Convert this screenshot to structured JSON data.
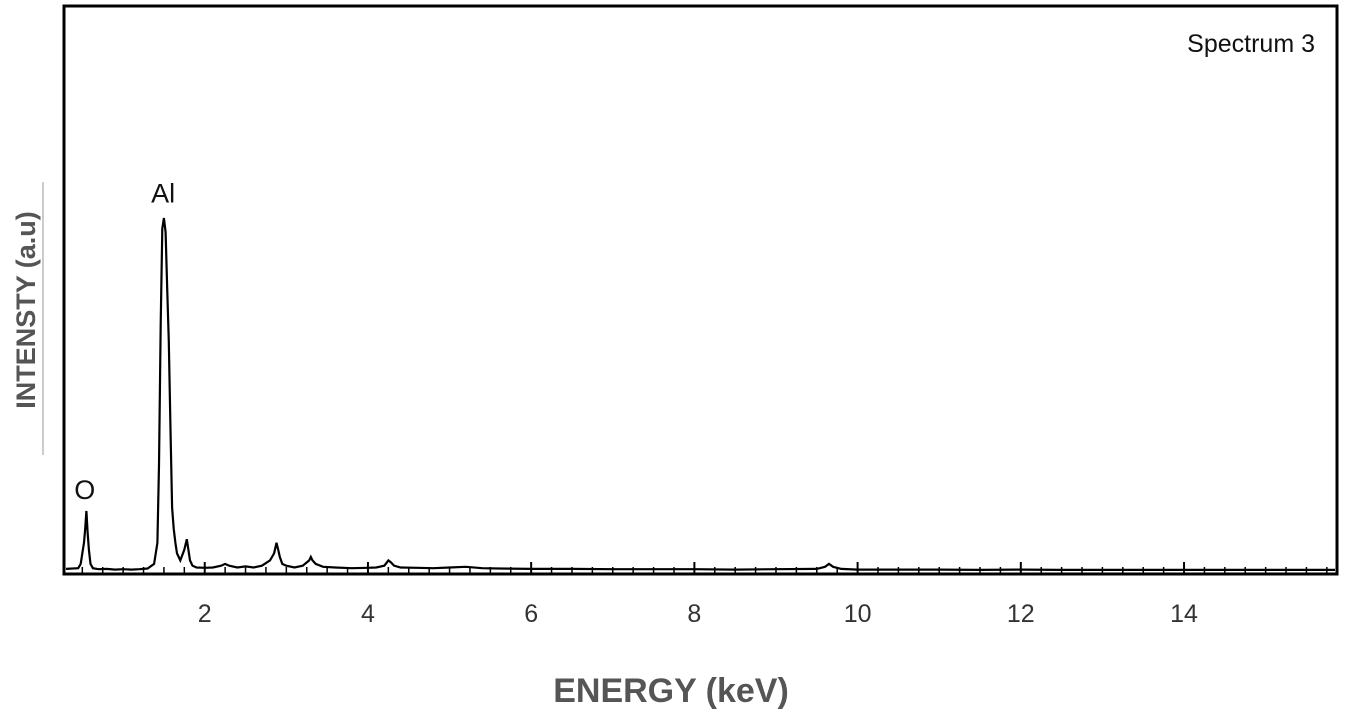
{
  "chart_data": {
    "type": "line",
    "title": "",
    "legend_text": "Spectrum 3",
    "legend_position": "top-right",
    "xlabel": "ENERGY (keV)",
    "ylabel": "INTENSTY (a.u)",
    "xlim": [
      0.3,
      15.85
    ],
    "ylim": [
      0,
      100
    ],
    "grid": false,
    "x_ticks": [
      2,
      4,
      6,
      8,
      10,
      12,
      14
    ],
    "x_minor_step": 0.25,
    "annotations": [
      {
        "text": "O",
        "x": 0.53,
        "y": 17
      },
      {
        "text": "Al",
        "x": 1.49,
        "y": 101
      }
    ],
    "series": [
      {
        "color": "#000000",
        "x": [
          0.3,
          0.45,
          0.48,
          0.5,
          0.52,
          0.535,
          0.55,
          0.565,
          0.58,
          0.6,
          0.63,
          0.7,
          0.8,
          0.9,
          1.0,
          1.1,
          1.2,
          1.3,
          1.38,
          1.42,
          1.44,
          1.46,
          1.48,
          1.5,
          1.52,
          1.54,
          1.56,
          1.58,
          1.6,
          1.62,
          1.64,
          1.66,
          1.7,
          1.75,
          1.78,
          1.8,
          1.82,
          1.85,
          1.9,
          2.0,
          2.1,
          2.2,
          2.25,
          2.3,
          2.4,
          2.5,
          2.6,
          2.7,
          2.8,
          2.85,
          2.88,
          2.9,
          2.92,
          2.95,
          3.0,
          3.1,
          3.2,
          3.28,
          3.3,
          3.32,
          3.36,
          3.45,
          3.6,
          3.8,
          4.0,
          4.1,
          4.2,
          4.25,
          4.28,
          4.32,
          4.4,
          4.6,
          4.8,
          5.0,
          5.2,
          5.4,
          5.6,
          6.0,
          6.5,
          7.0,
          7.5,
          8.0,
          8.5,
          9.0,
          9.5,
          9.6,
          9.65,
          9.7,
          9.8,
          10.0,
          10.5,
          11.0,
          11.5,
          12.0,
          12.5,
          13.0,
          13.5,
          14.0,
          14.5,
          15.0,
          15.5,
          15.85
        ],
        "y": [
          0.6,
          0.8,
          2,
          5,
          8,
          12,
          17,
          11,
          6,
          2,
          0.8,
          0.5,
          0.6,
          0.4,
          0.5,
          0.4,
          0.5,
          0.7,
          2,
          8,
          30,
          70,
          97,
          100,
          96,
          80,
          65,
          40,
          18,
          12,
          8,
          5,
          3,
          6,
          9,
          6,
          3,
          1.5,
          1,
          0.9,
          1,
          1.5,
          2,
          1.5,
          1,
          1.3,
          1,
          1.5,
          3,
          5,
          8,
          6,
          4,
          2,
          1.5,
          1,
          1.5,
          3,
          4,
          3,
          2,
          1.2,
          1,
          0.8,
          0.9,
          1,
          1.5,
          3,
          2.5,
          1.5,
          1,
          0.9,
          0.8,
          1,
          1.2,
          0.8,
          0.7,
          0.6,
          0.6,
          0.5,
          0.5,
          0.5,
          0.4,
          0.5,
          0.6,
          1.2,
          2,
          1.2,
          0.6,
          0.4,
          0.4,
          0.4,
          0.3,
          0.4,
          0.3,
          0.3,
          0.3,
          0.3,
          0.3,
          0.3,
          0.3,
          0.3
        ]
      }
    ]
  }
}
